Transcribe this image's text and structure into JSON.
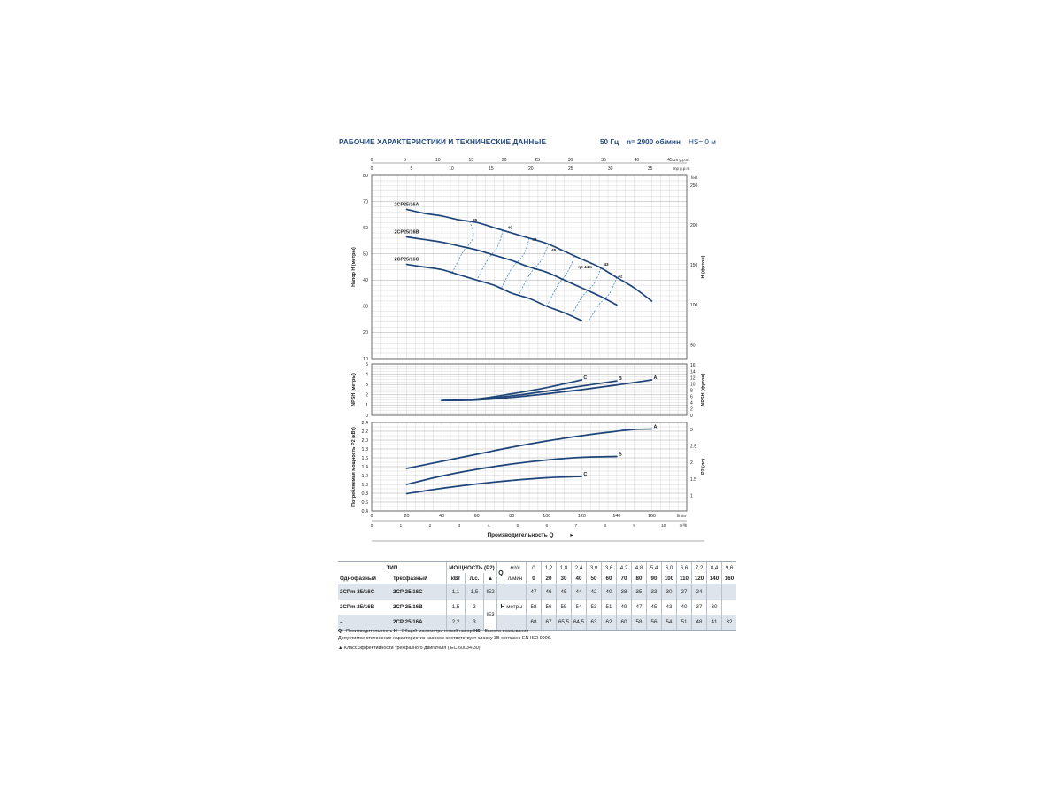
{
  "header": {
    "title": "РАБОЧИЕ ХАРАКТЕРИСТИКИ И ТЕХНИЧЕСКИЕ ДАННЫЕ",
    "frequency": "50 Гц",
    "speed": "n= 2900 об/мин",
    "hs": "HS= 0 м"
  },
  "colors": {
    "curve": "#1e4479",
    "efficiency": "#3d8bd0",
    "grid": "#c9c9c9",
    "accent": "#244a82",
    "shade": "#dde4ec"
  },
  "chart_data": [
    {
      "type": "line",
      "name": "head",
      "ylabel": "Напор Н (метры)",
      "y2label": "H (футов)",
      "xlim": [
        0,
        180
      ],
      "ylim": [
        10,
        80
      ],
      "yticks": [
        10,
        20,
        30,
        40,
        50,
        60,
        70,
        80
      ],
      "y2ticks": [
        {
          "label": "50",
          "h": 15.24
        },
        {
          "label": "100",
          "h": 30.48
        },
        {
          "label": "150",
          "h": 45.72
        },
        {
          "label": "200",
          "h": 60.96
        },
        {
          "label": "250",
          "h": 76.2
        }
      ],
      "y2unit": "feet",
      "top_axes": [
        {
          "unit": "US g.p.m.",
          "ticks": [
            "0",
            "5",
            "10",
            "15",
            "20",
            "25",
            "30",
            "35",
            "40",
            "45"
          ],
          "factor": 0.2642
        },
        {
          "unit": "Imp g.p.m.",
          "ticks": [
            "0",
            "5",
            "10",
            "15",
            "20",
            "25",
            "30",
            "35"
          ],
          "factor": 0.22
        }
      ],
      "series": [
        {
          "name": "2CP25/16A",
          "x": [
            20,
            30,
            40,
            50,
            60,
            70,
            80,
            90,
            100,
            110,
            120,
            130,
            140,
            150,
            160
          ],
          "y": [
            67,
            65.5,
            64.5,
            63,
            62,
            60,
            58,
            56,
            54,
            51,
            48,
            45,
            41,
            37,
            32
          ]
        },
        {
          "name": "2CP25/16B",
          "x": [
            20,
            30,
            40,
            50,
            60,
            70,
            80,
            90,
            100,
            110,
            120,
            130,
            140
          ],
          "y": [
            56.5,
            55.5,
            54.5,
            53,
            51.5,
            49.5,
            47.5,
            45,
            43,
            40,
            37,
            34,
            30.5
          ]
        },
        {
          "name": "2CP25/16C",
          "x": [
            20,
            30,
            40,
            50,
            60,
            70,
            80,
            90,
            100,
            110,
            120
          ],
          "y": [
            46,
            45,
            44,
            42,
            40,
            38,
            35,
            33,
            30,
            27.5,
            24.5
          ]
        }
      ],
      "efficiency_labels": [
        {
          "label": "35",
          "x": 59,
          "y": 62.5
        },
        {
          "label": "40",
          "x": 79,
          "y": 59.5
        },
        {
          "label": "43",
          "x": 93,
          "y": 55
        },
        {
          "label": "45",
          "x": 104,
          "y": 51
        },
        {
          "label": "η= 44%",
          "x": 122,
          "y": 44.5
        },
        {
          "label": "43",
          "x": 134,
          "y": 45.5
        },
        {
          "label": "42",
          "x": 142,
          "y": 41
        }
      ]
    },
    {
      "type": "line",
      "name": "npsh",
      "ylabel": "NPSH (метры)",
      "y2label": "NPSH (футов)",
      "xlim": [
        0,
        180
      ],
      "ylim": [
        0,
        5
      ],
      "yticks": [
        0,
        1,
        2,
        3,
        4,
        5
      ],
      "y2ticks": [
        {
          "label": "0",
          "h": 0
        },
        {
          "label": "2",
          "h": 0.61
        },
        {
          "label": "4",
          "h": 1.22
        },
        {
          "label": "6",
          "h": 1.83
        },
        {
          "label": "8",
          "h": 2.44
        },
        {
          "label": "10",
          "h": 3.05
        },
        {
          "label": "12",
          "h": 3.66
        },
        {
          "label": "14",
          "h": 4.27
        },
        {
          "label": "16",
          "h": 4.88
        }
      ],
      "y2unit": "feet",
      "series": [
        {
          "name": "A",
          "x": [
            40,
            60,
            80,
            100,
            120,
            140,
            160
          ],
          "y": [
            1.45,
            1.5,
            1.75,
            2.1,
            2.5,
            2.95,
            3.45
          ]
        },
        {
          "name": "B",
          "x": [
            40,
            60,
            80,
            100,
            120,
            140
          ],
          "y": [
            1.45,
            1.55,
            1.9,
            2.35,
            2.85,
            3.35
          ]
        },
        {
          "name": "C",
          "x": [
            40,
            60,
            80,
            100,
            120
          ],
          "y": [
            1.45,
            1.6,
            2.1,
            2.7,
            3.45
          ]
        }
      ]
    },
    {
      "type": "line",
      "name": "power",
      "ylabel": "Потребляемая мощность P2 (кВт)",
      "y2label": "P2 (лс)",
      "xlabel": "Производительность Q",
      "xlim": [
        0,
        180
      ],
      "ylim": [
        0.4,
        2.4
      ],
      "yticks": [
        0.4,
        0.6,
        0.8,
        1.0,
        1.2,
        1.4,
        1.6,
        1.8,
        2.0,
        2.2,
        2.4
      ],
      "y2ticks": [
        {
          "label": "1",
          "kw": 0.746
        },
        {
          "label": "1.5",
          "kw": 1.119
        },
        {
          "label": "2",
          "kw": 1.492
        },
        {
          "label": "2.5",
          "kw": 1.865
        },
        {
          "label": "3",
          "kw": 2.238
        }
      ],
      "y2unit": "hp",
      "x_lmin_ticks": [
        0,
        20,
        40,
        60,
        80,
        100,
        120,
        140,
        160
      ],
      "x_lmin_unit": "l/min",
      "x_m3h_ticks": [
        0,
        1,
        2,
        3,
        4,
        5,
        6,
        7,
        8,
        9,
        10
      ],
      "x_m3h_unit": "m³/h",
      "series": [
        {
          "name": "A",
          "x": [
            20,
            40,
            60,
            80,
            100,
            120,
            140,
            150,
            160
          ],
          "y": [
            1.36,
            1.52,
            1.68,
            1.84,
            1.98,
            2.1,
            2.2,
            2.24,
            2.25
          ]
        },
        {
          "name": "B",
          "x": [
            20,
            40,
            60,
            80,
            100,
            120,
            140
          ],
          "y": [
            1.0,
            1.19,
            1.34,
            1.46,
            1.55,
            1.61,
            1.63
          ]
        },
        {
          "name": "C",
          "x": [
            20,
            40,
            60,
            80,
            100,
            120
          ],
          "y": [
            0.79,
            0.91,
            1.01,
            1.09,
            1.15,
            1.18
          ]
        }
      ]
    }
  ],
  "table": {
    "hdr_type": "ТИП",
    "hdr_power": "МОЩНОСТЬ (P2)",
    "hdr_q": "Q",
    "hdr_m3h": "м³/ч",
    "hdr_lmin": "л/мин",
    "hdr_single": "Однофазный",
    "hdr_three": "Трехфазный",
    "hdr_kw": "кВт",
    "hdr_hp": "л.с.",
    "hdr_ie": "▲",
    "h_label": "H",
    "h_unit": "метры",
    "q_m3h": [
      "0",
      "1,2",
      "1,8",
      "2,4",
      "3,0",
      "3,6",
      "4,2",
      "4,8",
      "5,4",
      "6,0",
      "6,6",
      "7,2",
      "8,4",
      "9,6"
    ],
    "q_lmin": [
      "0",
      "20",
      "30",
      "40",
      "50",
      "60",
      "70",
      "80",
      "90",
      "100",
      "110",
      "120",
      "140",
      "160"
    ],
    "rows": [
      {
        "single": "2CPm 25/16C",
        "three": "2CP 25/16C",
        "kw": "1,1",
        "hp": "1,5",
        "ie": "IE2",
        "h": [
          "47",
          "46",
          "45",
          "44",
          "42",
          "40",
          "38",
          "35",
          "33",
          "30",
          "27",
          "24",
          "",
          ""
        ]
      },
      {
        "single": "2CPm 25/16B",
        "three": "2CP 25/16B",
        "kw": "1,5",
        "hp": "2",
        "ie": "IE3",
        "h": [
          "58",
          "56",
          "55",
          "54",
          "53",
          "51",
          "49",
          "47",
          "45",
          "43",
          "40",
          "37",
          "30",
          ""
        ]
      },
      {
        "single": "–",
        "three": "2CP 25/16A",
        "kw": "2,2",
        "hp": "3",
        "ie": "",
        "h": [
          "68",
          "67",
          "65,5",
          "64,5",
          "63",
          "62",
          "60",
          "58",
          "56",
          "54",
          "51",
          "48",
          "41",
          "32"
        ]
      }
    ]
  },
  "notes": {
    "q_abbr": "Q",
    "q_text": " - Производительность ",
    "h_abbr": "H",
    "h_text": " - Общий манометрический напор ",
    "hs_abbr": "HS",
    "hs_text": " - Высота всасывания",
    "tolerance": "Допустимое отклонение характеристик насосов соответствует классу 3B согласно EN ISO 9906.",
    "ie_note": "▲  Класс эффективности трехфазного двигателя (IEC 60034-30)"
  }
}
